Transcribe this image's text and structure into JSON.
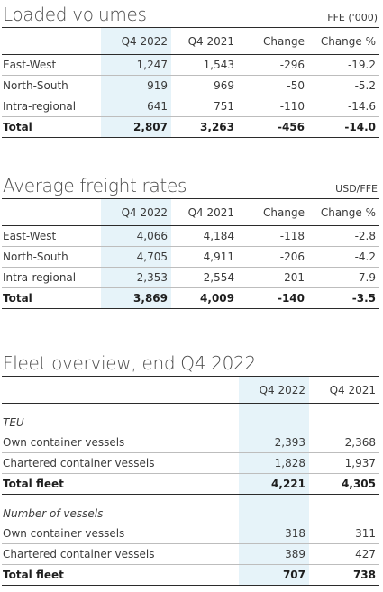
{
  "loaded_volumes": {
    "title": "Loaded volumes",
    "unit": "FFE ('000)",
    "headers": [
      "",
      "Q4 2022",
      "Q4 2021",
      "Change",
      "Change %"
    ],
    "rows": [
      {
        "label": "East-West",
        "q4_2022": "1,247",
        "q4_2021": "1,543",
        "change": "-296",
        "change_pct": "-19.2"
      },
      {
        "label": "North-South",
        "q4_2022": "919",
        "q4_2021": "969",
        "change": "-50",
        "change_pct": "-5.2"
      },
      {
        "label": "Intra-regional",
        "q4_2022": "641",
        "q4_2021": "751",
        "change": "-110",
        "change_pct": "-14.6"
      }
    ],
    "total": {
      "label": "Total",
      "q4_2022": "2,807",
      "q4_2021": "3,263",
      "change": "-456",
      "change_pct": "-14.0"
    }
  },
  "freight_rates": {
    "title": "Average freight rates",
    "unit": "USD/FFE",
    "headers": [
      "",
      "Q4 2022",
      "Q4 2021",
      "Change",
      "Change %"
    ],
    "rows": [
      {
        "label": "East-West",
        "q4_2022": "4,066",
        "q4_2021": "4,184",
        "change": "-118",
        "change_pct": "-2.8"
      },
      {
        "label": "North-South",
        "q4_2022": "4,705",
        "q4_2021": "4,911",
        "change": "-206",
        "change_pct": "-4.2"
      },
      {
        "label": "Intra-regional",
        "q4_2022": "2,353",
        "q4_2021": "2,554",
        "change": "-201",
        "change_pct": "-7.9"
      }
    ],
    "total": {
      "label": "Total",
      "q4_2022": "3,869",
      "q4_2021": "4,009",
      "change": "-140",
      "change_pct": "-3.5"
    }
  },
  "fleet": {
    "title": "Fleet overview, end Q4 2022",
    "headers": [
      "",
      "Q4 2022",
      "Q4 2021"
    ],
    "teu": {
      "heading": "TEU",
      "rows": [
        {
          "label": "Own container vessels",
          "q4_2022": "2,393",
          "q4_2021": "2,368"
        },
        {
          "label": "Chartered container vessels",
          "q4_2022": "1,828",
          "q4_2021": "1,937"
        }
      ],
      "total": {
        "label": "Total fleet",
        "q4_2022": "4,221",
        "q4_2021": "4,305"
      }
    },
    "vessels": {
      "heading": "Number of vessels",
      "rows": [
        {
          "label": "Own container vessels",
          "q4_2022": "318",
          "q4_2021": "311"
        },
        {
          "label": "Chartered container vessels",
          "q4_2022": "389",
          "q4_2021": "427"
        }
      ],
      "total": {
        "label": "Total fleet",
        "q4_2022": "707",
        "q4_2021": "738"
      }
    }
  },
  "colors": {
    "highlight_column": "#e6f3f9",
    "rule": "#2b2b2b",
    "text": "#3a3a3a"
  }
}
